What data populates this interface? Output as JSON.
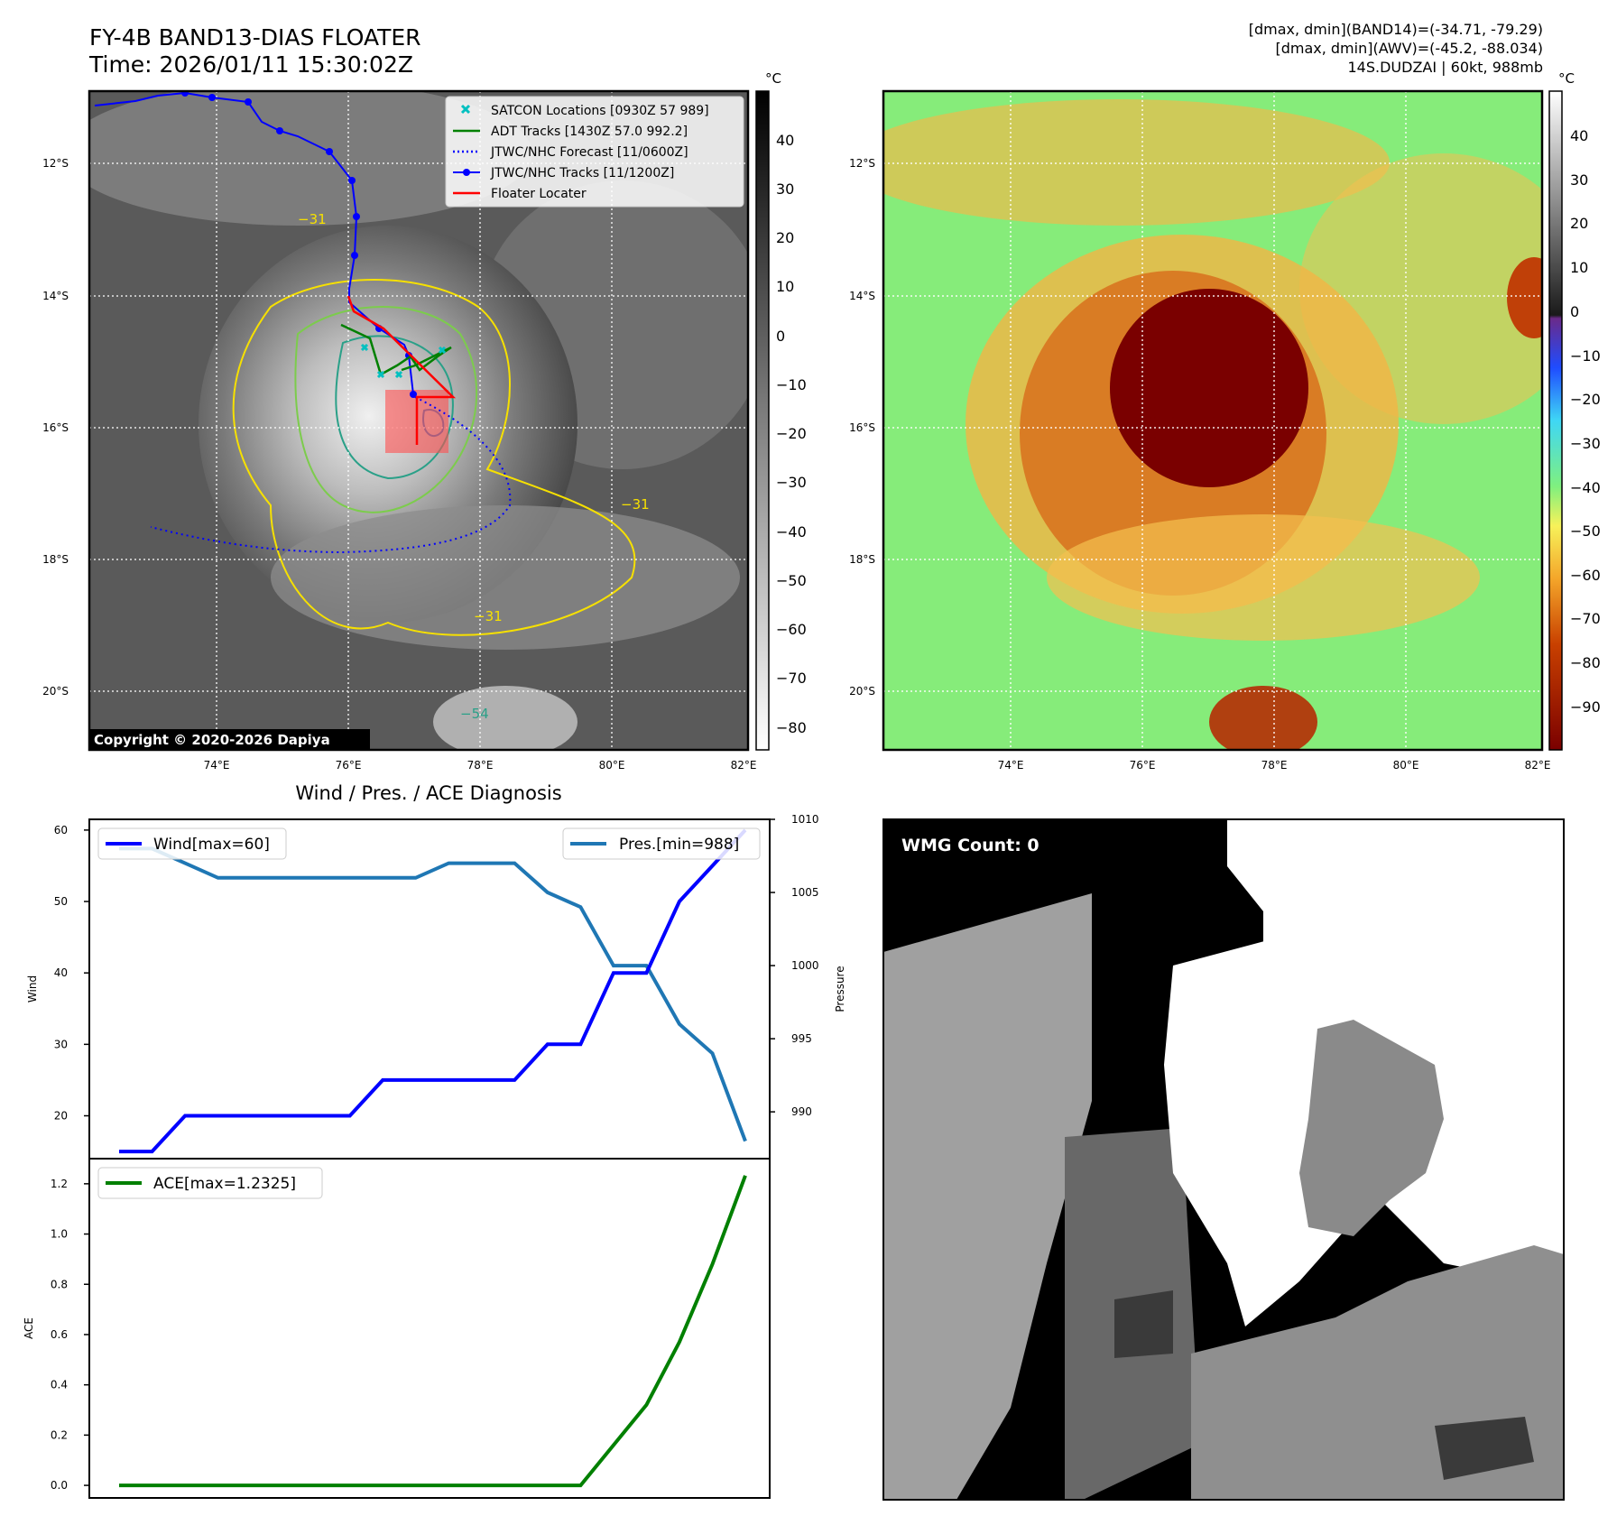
{
  "header": {
    "title_line1": "FY-4B BAND13-DIAS FLOATER",
    "title_line2": "Time: 2026/01/11 15:30:02Z",
    "info_line1": "[dmax, dmin](BAND14)=(-34.71, -79.29)",
    "info_line2": "[dmax, dmin](AWV)=(-45.2, -88.034)",
    "info_line3": "14S.DUDZAI | 60kt, 988mb"
  },
  "copyright": "Copyright © 2020-2026 Dapiya",
  "map_axes": {
    "lat_labels": [
      "12°S",
      "14°S",
      "16°S",
      "18°S",
      "20°S"
    ],
    "lon_labels": [
      "74°E",
      "76°E",
      "78°E",
      "80°E",
      "82°E"
    ]
  },
  "colorbar_left": {
    "unit": "°C",
    "ticks": [
      "40",
      "30",
      "20",
      "10",
      "0",
      "−10",
      "−20",
      "−30",
      "−40",
      "−50",
      "−60",
      "−70",
      "−80"
    ]
  },
  "colorbar_right": {
    "unit": "°C",
    "ticks": [
      "40",
      "30",
      "20",
      "10",
      "0",
      "−10",
      "−20",
      "−30",
      "−40",
      "−50",
      "−60",
      "−70",
      "−80",
      "−90"
    ]
  },
  "legend": [
    {
      "label": "SATCON Locations [0930Z 57 989]",
      "color": "#00c0c0",
      "kind": "x"
    },
    {
      "label": "ADT Tracks [1430Z 57.0 992.2]",
      "color": "#008000",
      "kind": "line"
    },
    {
      "label": "JTWC/NHC Forecast [11/0600Z]",
      "color": "#0000ff",
      "kind": "dotted"
    },
    {
      "label": "JTWC/NHC Tracks [11/1200Z]",
      "color": "#0000ff",
      "kind": "line-dot"
    },
    {
      "label": "Floater Locater",
      "color": "#ff0000",
      "kind": "line"
    }
  ],
  "contour_labels": [
    "−31",
    "−54"
  ],
  "wmg_label": "WMG Count: 0",
  "chart_data": [
    {
      "type": "line",
      "title": "Wind / Pres. / ACE Diagnosis",
      "ylabel": "Wind",
      "ylim": [
        14,
        61.5
      ],
      "yticks": [
        20,
        30,
        40,
        50,
        60
      ],
      "series": [
        {
          "name": "Wind[max=60]",
          "color": "#0000ff",
          "values": [
            15,
            15,
            20,
            20,
            20,
            20,
            20,
            20,
            25,
            25,
            25,
            25,
            25,
            30,
            30,
            40,
            40,
            50,
            55,
            60
          ]
        }
      ]
    },
    {
      "type": "line",
      "ylabel": "Pressure",
      "ylim": [
        986.8,
        1010
      ],
      "yticks": [
        990,
        995,
        1000,
        1005,
        1010
      ],
      "series": [
        {
          "name": "Pres.[min=988]",
          "color": "#1f77b4",
          "values": [
            1008,
            1008,
            1007,
            1006,
            1006,
            1006,
            1006,
            1006,
            1006,
            1006,
            1007,
            1007,
            1007,
            1005,
            1004,
            1000,
            1000,
            996,
            994,
            988
          ]
        }
      ]
    },
    {
      "type": "line",
      "ylabel": "ACE",
      "ylim": [
        -0.05,
        1.3
      ],
      "yticks": [
        "0.0",
        "0.2",
        "0.4",
        "0.6",
        "0.8",
        "1.0",
        "1.2"
      ],
      "series": [
        {
          "name": "ACE[max=1.2325]",
          "color": "#008000",
          "values": [
            0,
            0,
            0,
            0,
            0,
            0,
            0,
            0,
            0,
            0,
            0,
            0,
            0,
            0,
            0,
            0.16,
            0.32,
            0.57,
            0.88,
            1.2325
          ]
        }
      ]
    }
  ]
}
